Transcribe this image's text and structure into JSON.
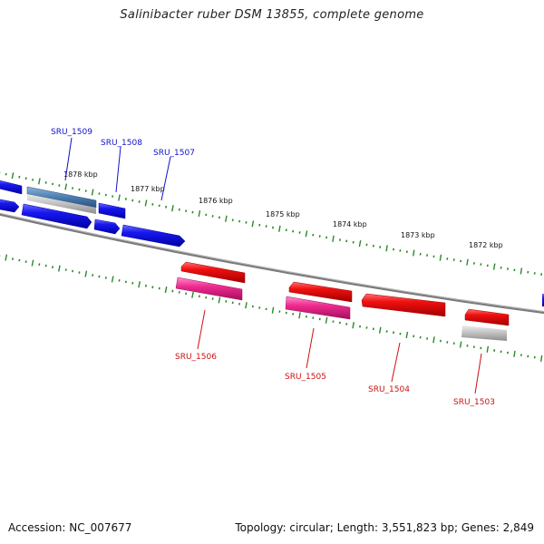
{
  "title": "Salinibacter ruber DSM 13855, complete genome",
  "footer": {
    "accession": "Accession: NC_007677",
    "summary": "Topology: circular; Length: 3,551,823 bp; Genes: 2,849"
  },
  "colors": {
    "forward_gene": "#1010ee",
    "reverse_gene": "#ee1111",
    "reverse_cds": "#ee2288",
    "pseudo_gene": "#b8b8b8",
    "rna_gene": "#4a7fb0",
    "tick": "#2a8a2a",
    "backbone": "#808080",
    "label_forward": "#1111cc",
    "label_reverse": "#cc1111"
  },
  "scale_labels": [
    "1878 kbp",
    "1877 kbp",
    "1876 kbp",
    "1875 kbp",
    "1874 kbp",
    "1873 kbp",
    "1872 kbp"
  ],
  "gene_labels": [
    {
      "text": "SRU_1509",
      "strand": "forward"
    },
    {
      "text": "SRU_1508",
      "strand": "forward"
    },
    {
      "text": "SRU_1507",
      "strand": "forward"
    },
    {
      "text": "SRU_1506",
      "strand": "reverse"
    },
    {
      "text": "SRU_1505",
      "strand": "reverse"
    },
    {
      "text": "SRU_1504",
      "strand": "reverse"
    },
    {
      "text": "SRU_1503",
      "strand": "reverse"
    }
  ]
}
